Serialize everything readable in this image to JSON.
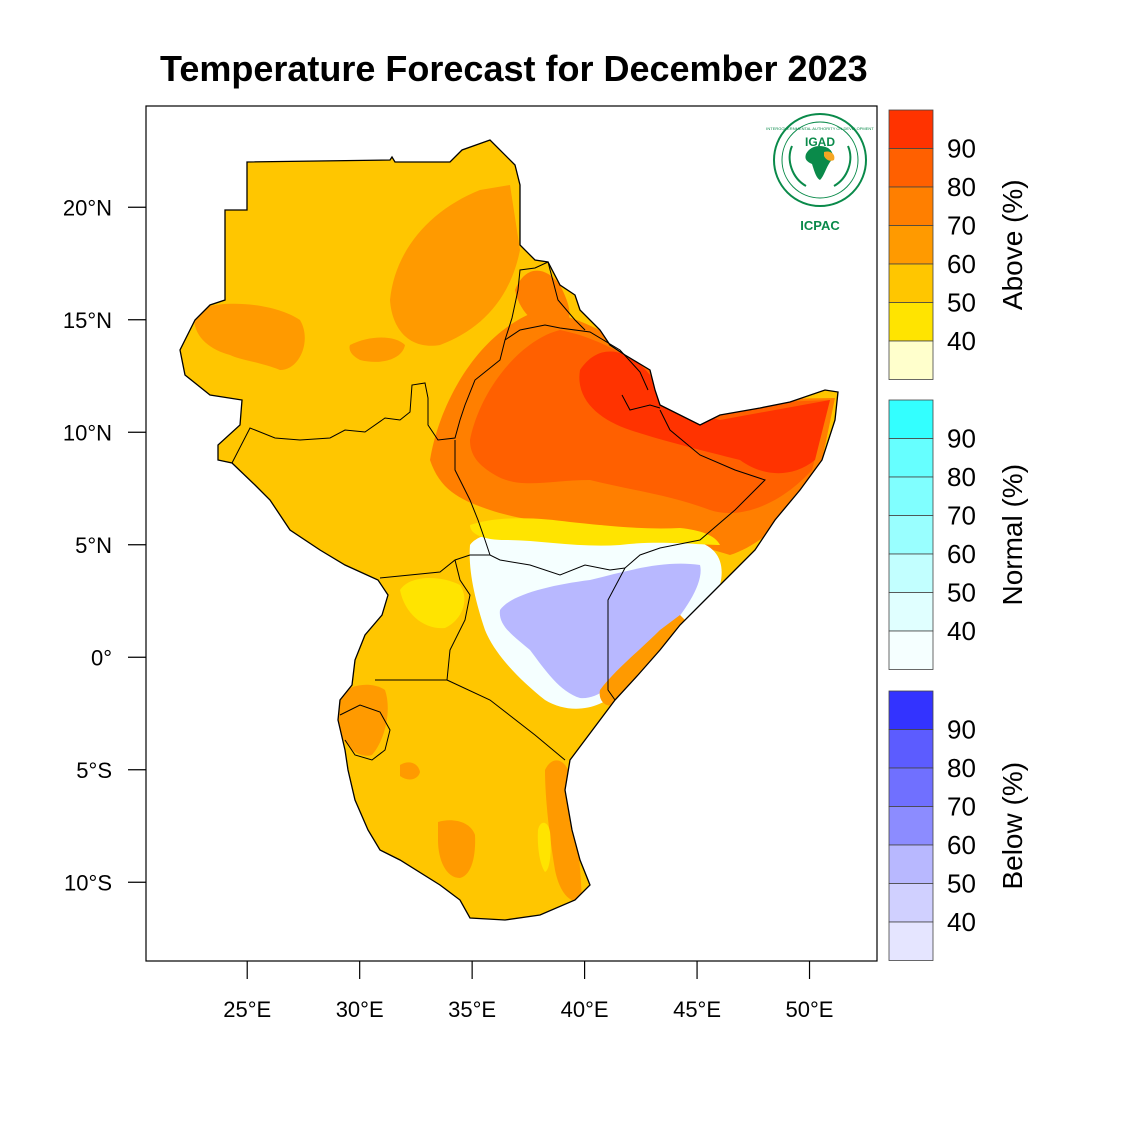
{
  "title": "Temperature Forecast for December 2023",
  "logo": {
    "top_text": "IGAD",
    "bottom_text": "ICPAC",
    "ring_text": "INTERGOVERNMENTAL AUTHORITY ON DEVELOPMENT"
  },
  "axes": {
    "lat_labels": [
      {
        "value": 20,
        "label": "20°N"
      },
      {
        "value": 15,
        "label": "15°N"
      },
      {
        "value": 10,
        "label": "10°N"
      },
      {
        "value": 5,
        "label": "5°N"
      },
      {
        "value": 0,
        "label": "0°"
      },
      {
        "value": -5,
        "label": "5°S"
      },
      {
        "value": -10,
        "label": "10°S"
      }
    ],
    "lon_labels": [
      {
        "value": 25,
        "label": "25°E"
      },
      {
        "value": 30,
        "label": "30°E"
      },
      {
        "value": 35,
        "label": "35°E"
      },
      {
        "value": 40,
        "label": "40°E"
      },
      {
        "value": 45,
        "label": "45°E"
      },
      {
        "value": 50,
        "label": "50°E"
      }
    ],
    "lon_range": [
      20.5,
      53
    ],
    "lat_range": [
      -13.5,
      24.5
    ]
  },
  "legends": [
    {
      "name": "Above (%)",
      "ticks": [
        "90",
        "80",
        "70",
        "60",
        "50",
        "40"
      ],
      "colors": [
        "#ff3300",
        "#ff6000",
        "#ff7f00",
        "#ff9a00",
        "#ffc600",
        "#ffe400",
        "#ffffcc"
      ]
    },
    {
      "name": "Normal (%)",
      "ticks": [
        "90",
        "80",
        "70",
        "60",
        "50",
        "40"
      ],
      "colors": [
        "#33ffff",
        "#66ffff",
        "#80ffff",
        "#99ffff",
        "#c2ffff",
        "#e0ffff",
        "#f5ffff"
      ]
    },
    {
      "name": "Below (%)",
      "ticks": [
        "90",
        "80",
        "70",
        "60",
        "50",
        "40"
      ],
      "colors": [
        "#3333ff",
        "#5c5cff",
        "#7070ff",
        "#8c8cff",
        "#b8b8ff",
        "#d0d0ff",
        "#e5e5ff"
      ]
    }
  ]
}
